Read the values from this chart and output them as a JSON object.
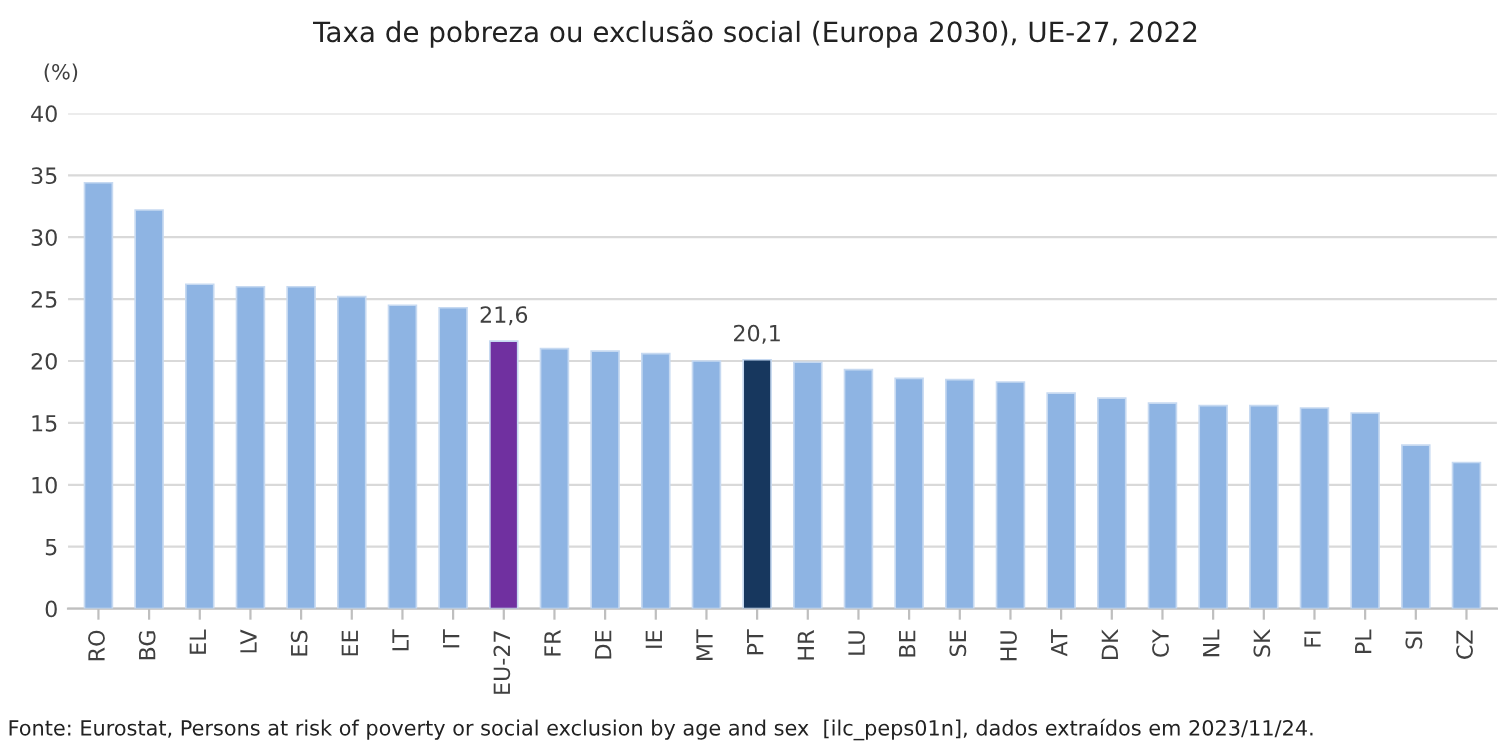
{
  "chart_data": {
    "type": "bar",
    "title": "Taxa de pobreza ou exclusão social (Europa 2030), UE-27, 2022",
    "ylabel": "(%)",
    "categories": [
      "RO",
      "BG",
      "EL",
      "LV",
      "ES",
      "EE",
      "LT",
      "IT",
      "EU-27",
      "FR",
      "DE",
      "IE",
      "MT",
      "PT",
      "HR",
      "LU",
      "BE",
      "SE",
      "HU",
      "AT",
      "DK",
      "CY",
      "NL",
      "SK",
      "FI",
      "PL",
      "SI",
      "CZ"
    ],
    "values": [
      34.4,
      32.2,
      26.2,
      26.0,
      26.0,
      25.2,
      24.5,
      24.3,
      21.6,
      21.0,
      20.8,
      20.6,
      20.0,
      20.1,
      19.9,
      19.3,
      18.6,
      18.5,
      18.3,
      17.4,
      17.0,
      16.6,
      16.4,
      16.4,
      16.2,
      15.8,
      13.2,
      11.8
    ],
    "colors": [
      "#8eb4e3",
      "#8eb4e3",
      "#8eb4e3",
      "#8eb4e3",
      "#8eb4e3",
      "#8eb4e3",
      "#8eb4e3",
      "#8eb4e3",
      "#7030a0",
      "#8eb4e3",
      "#8eb4e3",
      "#8eb4e3",
      "#8eb4e3",
      "#17375e",
      "#8eb4e3",
      "#8eb4e3",
      "#8eb4e3",
      "#8eb4e3",
      "#8eb4e3",
      "#8eb4e3",
      "#8eb4e3",
      "#8eb4e3",
      "#8eb4e3",
      "#8eb4e3",
      "#8eb4e3",
      "#8eb4e3",
      "#8eb4e3",
      "#8eb4e3"
    ],
    "value_labels": [
      null,
      null,
      null,
      null,
      null,
      null,
      null,
      null,
      "21,6",
      null,
      null,
      null,
      null,
      "20,1",
      null,
      null,
      null,
      null,
      null,
      null,
      null,
      null,
      null,
      null,
      null,
      null,
      null,
      null
    ],
    "ylim": [
      0,
      40
    ],
    "yticks": [
      0,
      5,
      10,
      15,
      20,
      25,
      30,
      35,
      40
    ],
    "grid": "y",
    "annotations": [
      "Fonte: Eurostat, Persons at risk of poverty or social exclusion by age and sex  [ilc_peps01n], dados extraídos em 2023/11/24."
    ]
  }
}
